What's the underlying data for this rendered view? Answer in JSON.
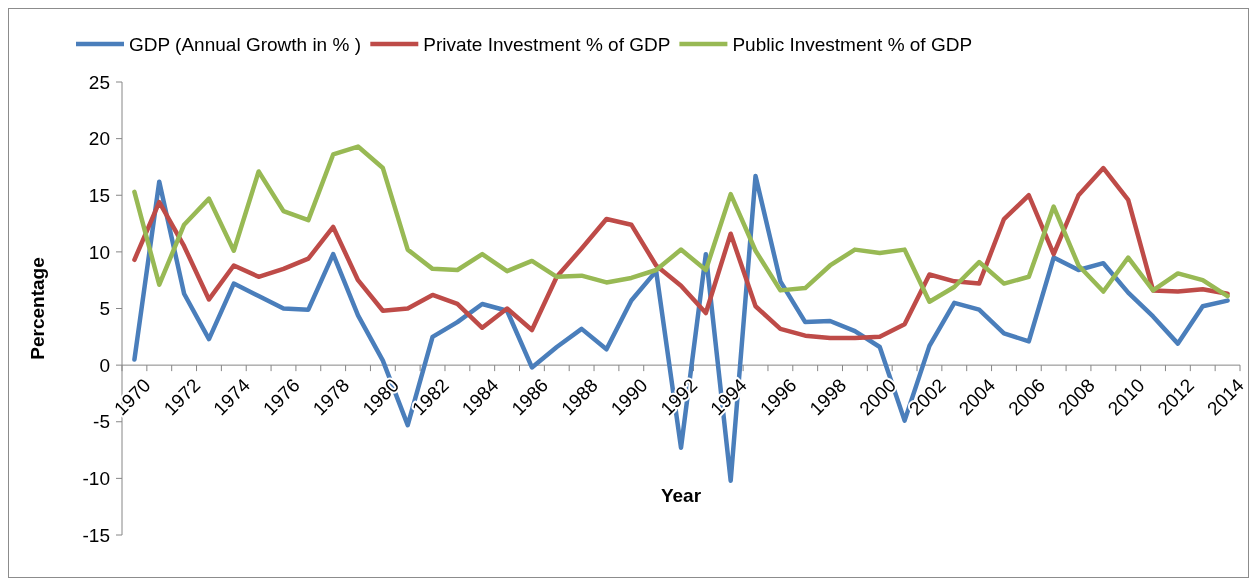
{
  "chart_data": {
    "type": "line",
    "xlabel": "Year",
    "ylabel": "Percentage",
    "categories": [
      "1970",
      null,
      "1972",
      null,
      "1974",
      null,
      "1976",
      null,
      "1978",
      null,
      "1980",
      null,
      "1982",
      null,
      "1984",
      null,
      "1986",
      null,
      "1988",
      null,
      "1990",
      null,
      "1992",
      null,
      "1994",
      null,
      "1996",
      null,
      "1998",
      null,
      "2000",
      null,
      "2002",
      null,
      "2004",
      null,
      "2006",
      null,
      "2008",
      null,
      "2010",
      null,
      "2012",
      null,
      "2014"
    ],
    "series": [
      {
        "name": "GDP (Annual Growth in % )",
        "color": "#4a7ebb",
        "values": [
          0.5,
          16.2,
          6.3,
          2.3,
          7.2,
          6.1,
          5.0,
          4.9,
          9.8,
          4.4,
          0.4,
          -5.3,
          2.5,
          3.8,
          5.4,
          4.8,
          -0.2,
          1.6,
          3.2,
          1.4,
          5.7,
          8.3,
          -7.3,
          9.8,
          -10.2,
          16.7,
          7.4,
          3.8,
          3.9,
          3.0,
          1.6,
          -4.9,
          1.7,
          5.5,
          4.9,
          2.8,
          2.1,
          9.5,
          8.4,
          9.0,
          6.4,
          4.3,
          1.9,
          5.2,
          5.7
        ]
      },
      {
        "name": "Private Investment % of GDP",
        "color": "#be4b48",
        "values": [
          9.3,
          14.4,
          10.5,
          5.8,
          8.8,
          7.8,
          8.5,
          9.4,
          12.2,
          7.5,
          4.8,
          5.0,
          6.2,
          5.4,
          3.3,
          5.0,
          3.1,
          7.8,
          10.3,
          12.9,
          12.4,
          8.8,
          7.0,
          4.6,
          11.6,
          5.2,
          3.2,
          2.6,
          2.4,
          2.4,
          2.5,
          3.6,
          8.0,
          7.4,
          7.2,
          12.9,
          15.0,
          9.8,
          15.0,
          17.4,
          14.6,
          6.6,
          6.5,
          6.7,
          6.3
        ]
      },
      {
        "name": "Public Investment  % of  GDP",
        "color": "#98b954",
        "values": [
          15.3,
          7.1,
          12.4,
          14.7,
          10.1,
          17.1,
          13.6,
          12.8,
          18.6,
          19.3,
          17.4,
          10.2,
          8.5,
          8.4,
          9.8,
          8.3,
          9.2,
          7.8,
          7.9,
          7.3,
          7.7,
          8.4,
          10.2,
          8.4,
          15.1,
          10.1,
          6.6,
          6.8,
          8.8,
          10.2,
          9.9,
          10.2,
          5.6,
          6.9,
          9.1,
          7.2,
          7.8,
          14.0,
          8.8,
          6.5,
          9.5,
          6.6,
          8.1,
          7.5,
          6.1
        ]
      }
    ],
    "ylim": [
      -15,
      25
    ],
    "yticks": [
      -15,
      -10,
      -5,
      0,
      5,
      10,
      15,
      20,
      25
    ],
    "grid": false,
    "legend": "top",
    "line_style": "solid",
    "marker": "none"
  }
}
